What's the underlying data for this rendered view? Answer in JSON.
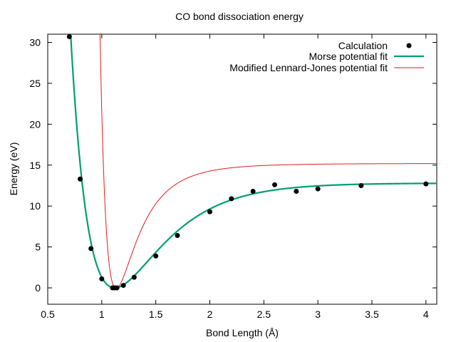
{
  "chart_data": {
    "type": "scatter",
    "title": "CO bond dissociation energy",
    "xlabel": "Bond Length (Å)",
    "ylabel": "Energy (eV)",
    "xlim": [
      0.5,
      4.1
    ],
    "ylim": [
      -2,
      31
    ],
    "xticks": [
      0.5,
      1,
      1.5,
      2,
      2.5,
      3,
      3.5,
      4
    ],
    "xtick_labels": [
      "0.5",
      "1",
      "1.5",
      "2",
      "2.5",
      "3",
      "3.5",
      "4"
    ],
    "yticks": [
      0,
      5,
      10,
      15,
      20,
      25,
      30
    ],
    "ytick_labels": [
      "0",
      "5",
      "10",
      "15",
      "20",
      "25",
      "30"
    ],
    "grid": false,
    "legend_position": "top-right",
    "series": [
      {
        "name": "Calculation",
        "kind": "points",
        "color": "#000000",
        "x": [
          0.7,
          0.8,
          0.9,
          1.0,
          1.1,
          1.12,
          1.14,
          1.2,
          1.3,
          1.5,
          1.7,
          2.0,
          2.2,
          2.4,
          2.6,
          2.8,
          3.0,
          3.4,
          4.0
        ],
        "y": [
          30.7,
          13.3,
          4.8,
          1.1,
          0.0,
          0.0,
          0.0,
          0.3,
          1.3,
          3.9,
          6.4,
          9.3,
          10.9,
          11.8,
          12.6,
          11.8,
          12.1,
          12.5,
          12.7
        ]
      },
      {
        "name": "Morse potential fit",
        "kind": "morse",
        "color": "#009e73",
        "params": {
          "De": 12.8,
          "a": 2.3,
          "re": 1.12
        }
      },
      {
        "name": "Modified Lennard-Jones potential fit",
        "kind": "lj",
        "color": "#e41a1c",
        "params": {
          "De": 15.2,
          "re": 1.12,
          "n": 13,
          "m": 6
        }
      }
    ]
  }
}
